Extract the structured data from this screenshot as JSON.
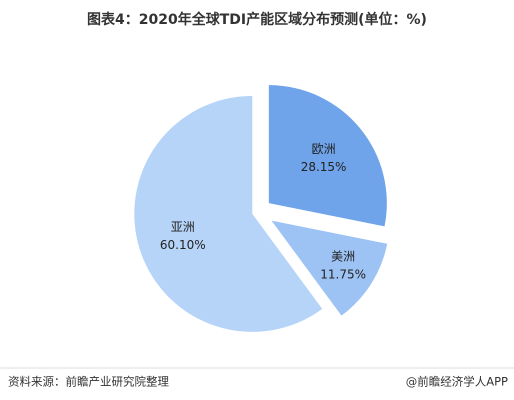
{
  "chart_data": {
    "type": "pie",
    "title": "图表4：2020年全球TDI产能区域分布预测(单位：%)",
    "categories": [
      "欧洲",
      "美洲",
      "亚洲"
    ],
    "values": [
      28.15,
      11.75,
      60.1
    ],
    "value_labels": [
      "28.15%",
      "11.75%",
      "60.10%"
    ],
    "colors": [
      "#6fa3ea",
      "#9dc3f4",
      "#b6d4f8"
    ],
    "source": "资料来源：前瞻产业研究院整理",
    "credit": "@前瞻经济学人APP"
  }
}
